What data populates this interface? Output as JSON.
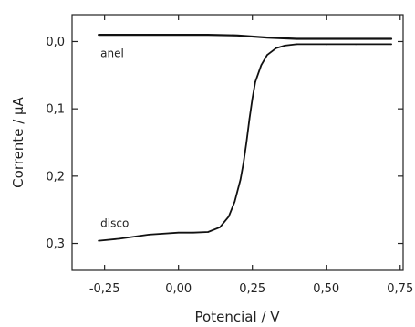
{
  "chart_data": {
    "type": "line",
    "xlabel": "Potencial  /  V",
    "ylabel": "Corrente  /  μA",
    "xlim": [
      -0.36,
      0.76
    ],
    "ylim": [
      -0.04,
      0.34
    ],
    "y_inverted": true,
    "grid": false,
    "x_ticks": [
      -0.25,
      0.0,
      0.25,
      0.5,
      0.75
    ],
    "x_tick_labels": [
      "-0,25",
      "0,00",
      "0,25",
      "0,50",
      "0,75"
    ],
    "y_ticks": [
      0.0,
      0.1,
      0.2,
      0.3
    ],
    "y_tick_labels": [
      "0,0",
      "0,1",
      "0,2",
      "0,3"
    ],
    "annotations": [
      {
        "text": "anel",
        "x": -0.27,
        "y": 0.018
      },
      {
        "text": "disco",
        "x": -0.27,
        "y": 0.27
      }
    ],
    "series": [
      {
        "x": [
          -0.27,
          -0.2,
          -0.1,
          0.0,
          0.05,
          0.1,
          0.14,
          0.17,
          0.19,
          0.21,
          0.22,
          0.23,
          0.24,
          0.25,
          0.26,
          0.28,
          0.3,
          0.33,
          0.36,
          0.4,
          0.5,
          0.6,
          0.72
        ],
        "values": [
          0.296,
          0.293,
          0.287,
          0.284,
          0.284,
          0.283,
          0.276,
          0.26,
          0.238,
          0.205,
          0.18,
          0.15,
          0.115,
          0.085,
          0.06,
          0.035,
          0.02,
          0.01,
          0.006,
          0.004,
          0.004,
          0.004,
          0.004
        ]
      },
      {
        "x": [
          -0.27,
          -0.1,
          0.0,
          0.1,
          0.2,
          0.3,
          0.4,
          0.5,
          0.6,
          0.72
        ],
        "values": [
          -0.01,
          -0.01,
          -0.01,
          -0.01,
          -0.009,
          -0.006,
          -0.004,
          -0.004,
          -0.004,
          -0.004
        ]
      }
    ]
  }
}
